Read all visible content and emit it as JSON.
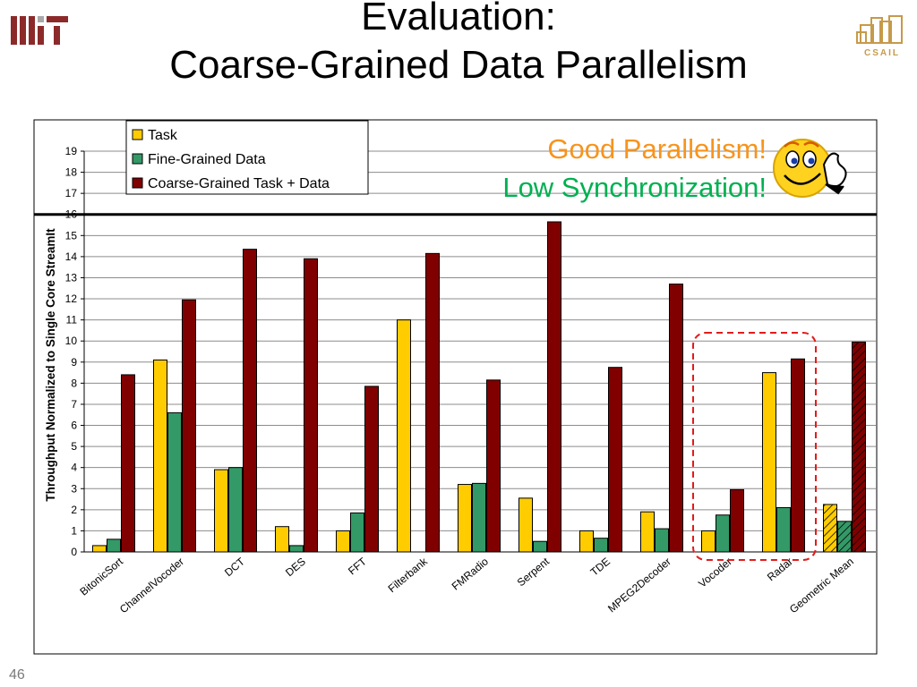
{
  "slide": {
    "title_line1": "Evaluation:",
    "title_line2": "Coarse-Grained Data Parallelism",
    "page_number": "46",
    "logo_left_icon": "mit-logo-icon",
    "logo_right_icon": "csail-logo-icon",
    "logo_right_text": "CSAIL"
  },
  "callout": {
    "line1": "Good Parallelism!",
    "line2": "Low Synchronization!",
    "line1_color": "#f7941d",
    "line2_color": "#00b050",
    "icon": "smiley-thumbs-up-icon"
  },
  "chart_data": {
    "type": "bar",
    "ylabel": "Throughput Normalized to Single Core StreamIt",
    "ylim": [
      0,
      19
    ],
    "yticks": [
      0,
      1,
      2,
      3,
      4,
      5,
      6,
      7,
      8,
      9,
      10,
      11,
      12,
      13,
      14,
      15,
      16,
      17,
      18,
      19
    ],
    "grid": true,
    "reference_line": 16,
    "legend_position": "top-left",
    "categories": [
      "BitonicSort",
      "ChannelVocoder",
      "DCT",
      "DES",
      "FFT",
      "Filterbank",
      "FMRadio",
      "Serpent",
      "TDE",
      "MPEG2Decoder",
      "Vocoder",
      "Radar",
      "Geometric Mean"
    ],
    "series": [
      {
        "name": "Task",
        "color": "#ffcc00",
        "values": [
          0.3,
          9.1,
          3.9,
          1.2,
          1.0,
          11.0,
          3.2,
          2.55,
          1.0,
          1.9,
          1.0,
          8.5,
          2.25
        ]
      },
      {
        "name": "Fine-Grained Data",
        "color": "#339966",
        "values": [
          0.6,
          6.6,
          4.0,
          0.3,
          1.85,
          0.0,
          3.25,
          0.5,
          0.65,
          1.1,
          1.75,
          2.1,
          1.45
        ]
      },
      {
        "name": "Coarse-Grained Task + Data",
        "color": "#800000",
        "values": [
          8.4,
          11.95,
          14.35,
          13.9,
          7.85,
          14.15,
          8.15,
          15.65,
          8.75,
          12.7,
          2.95,
          9.15,
          9.95
        ]
      }
    ],
    "highlight_categories": [
      "Vocoder",
      "Radar"
    ]
  }
}
